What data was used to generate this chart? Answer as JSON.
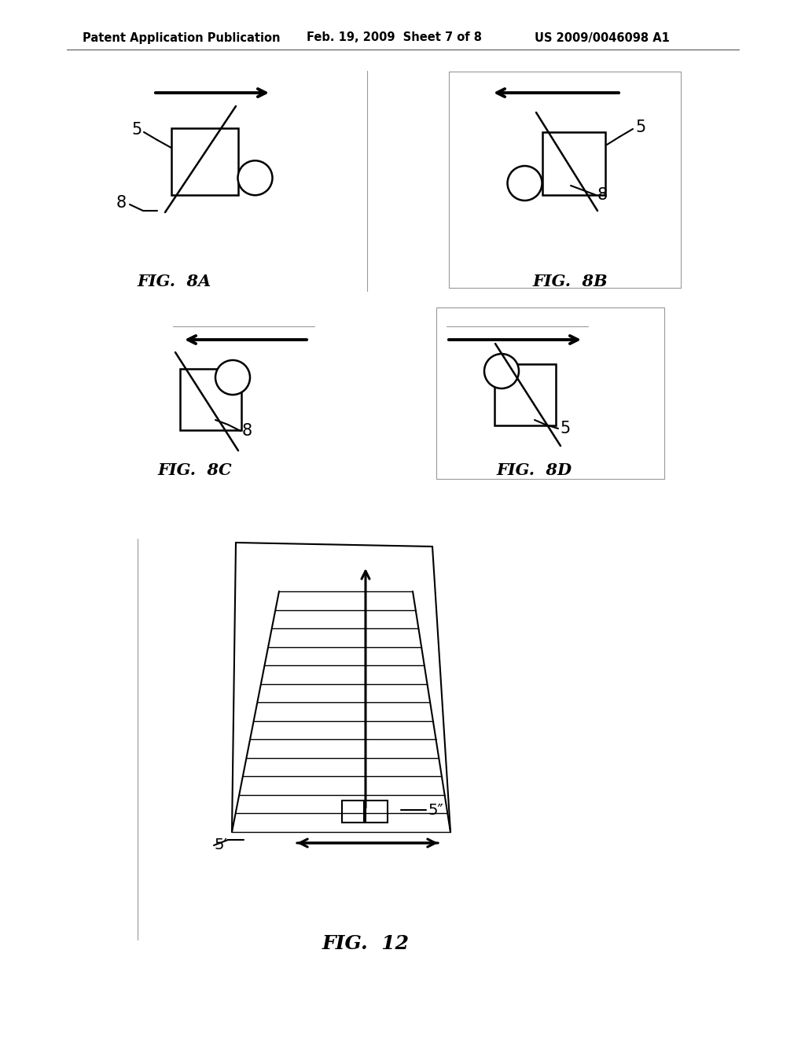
{
  "bg_color": "#ffffff",
  "header_left": "Patent Application Publication",
  "header_mid": "Feb. 19, 2009  Sheet 7 of 8",
  "header_right": "US 2009/0046098 A1",
  "line_color": "#000000",
  "gray_color": "#999999"
}
